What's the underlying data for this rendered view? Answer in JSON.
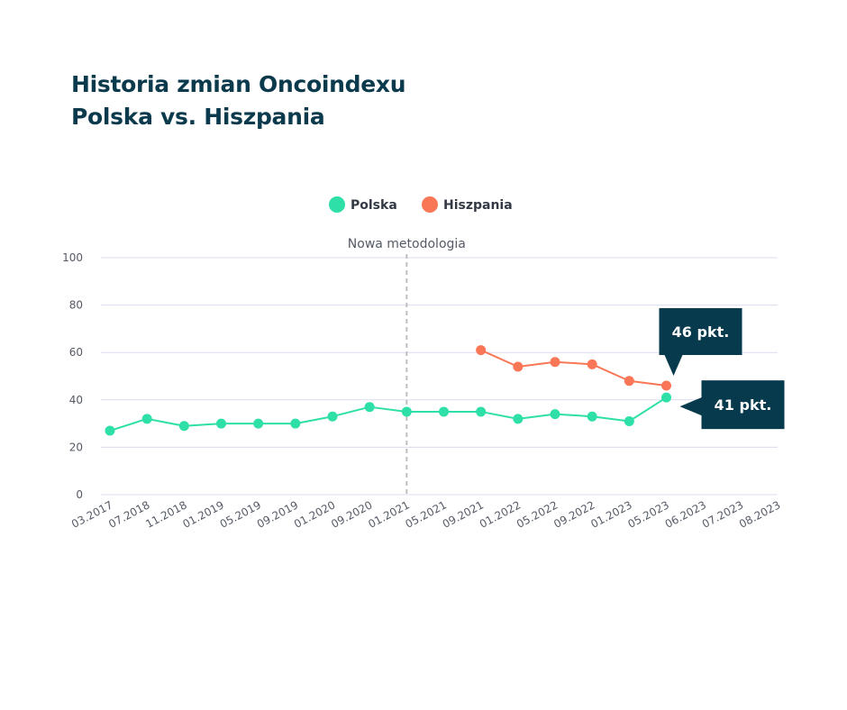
{
  "title_lines": [
    "Historia zmian Oncoindexu",
    "Polska vs. Hiszpania"
  ],
  "colors": {
    "polska": "#2ee0a7",
    "hiszpania": "#f97756",
    "title": "#0b3a4c",
    "callout": "#063a4c",
    "grid": "#dcdcf0",
    "vline": "#bfbfbf"
  },
  "chart_data": {
    "type": "line",
    "title": "Historia zmian Oncoindexu Polska vs. Hiszpania",
    "categories": [
      "03.2017",
      "07.2018",
      "11.2018",
      "01.2019",
      "05.2019",
      "09.2019",
      "01.2020",
      "09.2020",
      "01.2021",
      "05.2021",
      "09.2021",
      "01.2022",
      "05.2022",
      "09.2022",
      "01.2023",
      "05.2023",
      "06.2023",
      "07.2023",
      "08.2023"
    ],
    "series": [
      {
        "name": "Polska",
        "color": "#2ee0a7",
        "values": [
          27,
          32,
          29,
          30,
          30,
          30,
          33,
          37,
          35,
          35,
          35,
          32,
          34,
          33,
          31,
          41,
          null,
          null,
          null
        ]
      },
      {
        "name": "Hiszpania",
        "color": "#f97756",
        "values": [
          null,
          null,
          null,
          null,
          null,
          null,
          null,
          null,
          null,
          null,
          61,
          54,
          56,
          55,
          48,
          46,
          null,
          null,
          null
        ]
      }
    ],
    "ylim": [
      0,
      100
    ],
    "yticks": [
      0,
      20,
      40,
      60,
      80,
      100
    ],
    "grid": true,
    "legend": "top-center",
    "xlabel": "",
    "ylabel": "",
    "annotations": [
      {
        "text": "Nowa metodologia",
        "type": "vertical-line",
        "at": "01.2021"
      }
    ],
    "callouts": [
      {
        "text": "46 pkt.",
        "series": "Hiszpania",
        "at": "05.2023",
        "placement": "above"
      },
      {
        "text": "41 pkt.",
        "series": "Polska",
        "at": "05.2023",
        "placement": "right"
      }
    ]
  }
}
